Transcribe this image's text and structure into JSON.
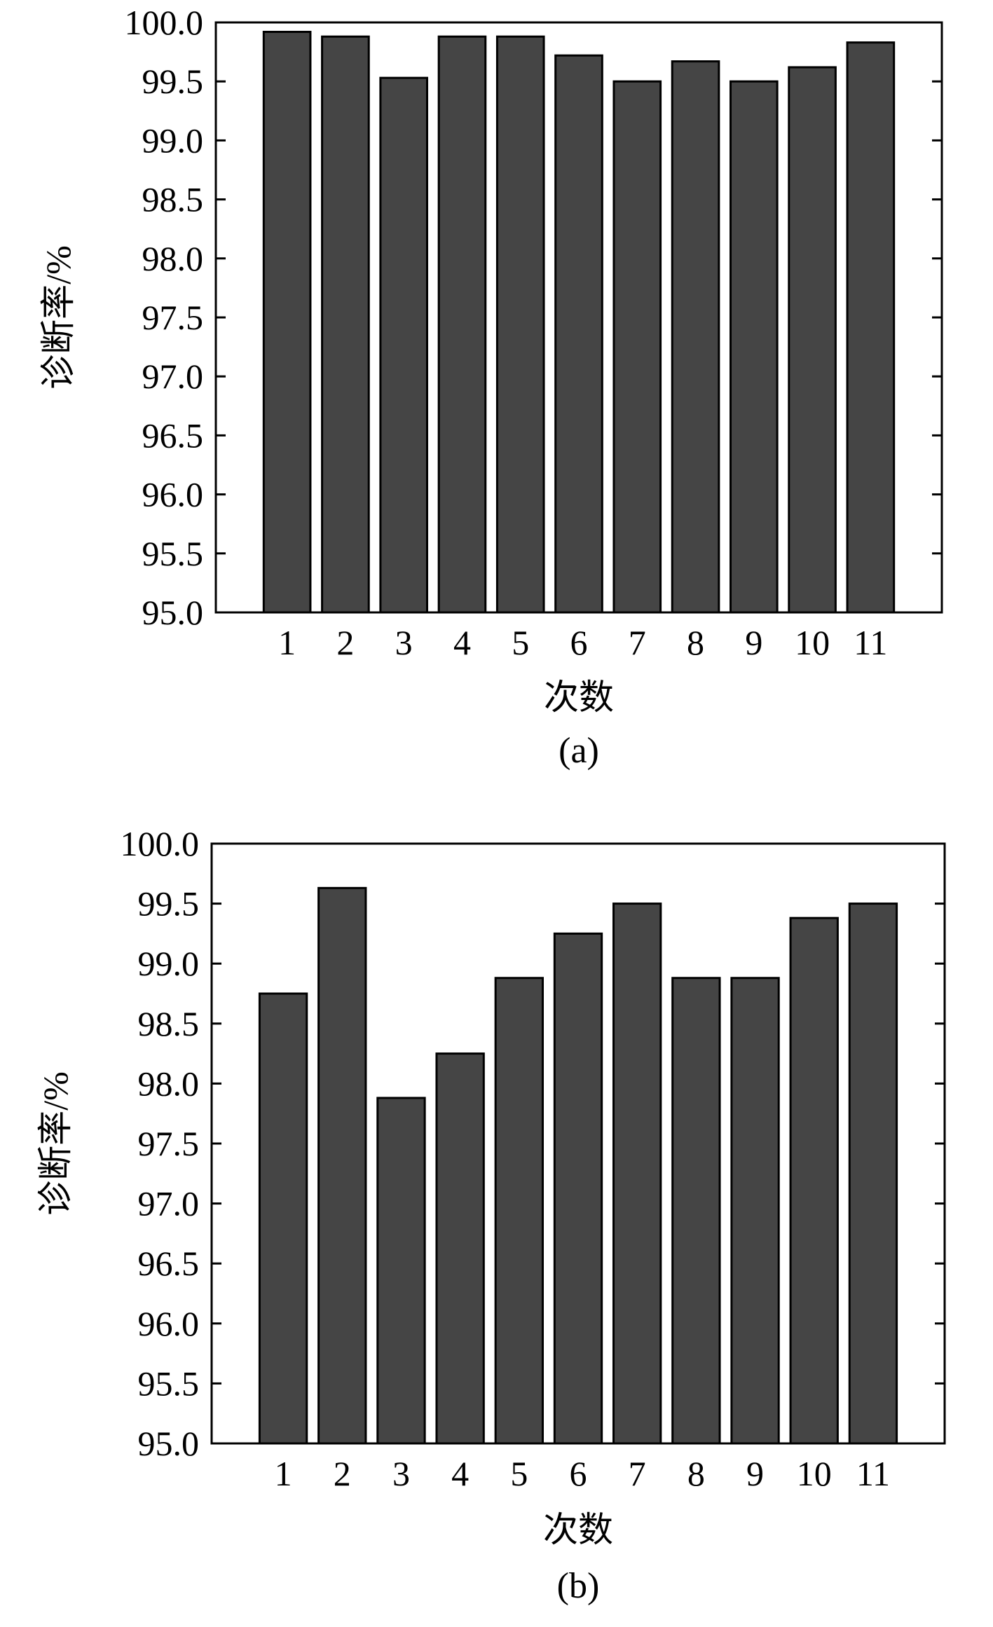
{
  "chart_data": [
    {
      "type": "bar",
      "panel_label": "(a)",
      "xlabel": "次数",
      "ylabel": "诊断率/%",
      "categories": [
        "1",
        "2",
        "3",
        "4",
        "5",
        "6",
        "7",
        "8",
        "9",
        "10",
        "11"
      ],
      "values": [
        99.92,
        99.88,
        99.53,
        99.88,
        99.88,
        99.72,
        99.5,
        99.67,
        99.5,
        99.62,
        99.83
      ],
      "ylim": [
        95.0,
        100.0
      ],
      "yticks": [
        "95.0",
        "95.5",
        "96.0",
        "96.5",
        "97.0",
        "97.5",
        "98.0",
        "98.5",
        "99.0",
        "99.5",
        "100.0"
      ],
      "grid": false,
      "bar_color": "#454545"
    },
    {
      "type": "bar",
      "panel_label": "(b)",
      "xlabel": "次数",
      "ylabel": "诊断率/%",
      "categories": [
        "1",
        "2",
        "3",
        "4",
        "5",
        "6",
        "7",
        "8",
        "9",
        "10",
        "11"
      ],
      "values": [
        98.75,
        99.63,
        97.88,
        98.25,
        98.88,
        99.25,
        99.5,
        98.88,
        98.88,
        99.38,
        99.5
      ],
      "ylim": [
        95.0,
        100.0
      ],
      "yticks": [
        "95.0",
        "95.5",
        "96.0",
        "96.5",
        "97.0",
        "97.5",
        "98.0",
        "98.5",
        "99.0",
        "99.5",
        "100.0"
      ],
      "grid": false,
      "bar_color": "#454545"
    }
  ]
}
